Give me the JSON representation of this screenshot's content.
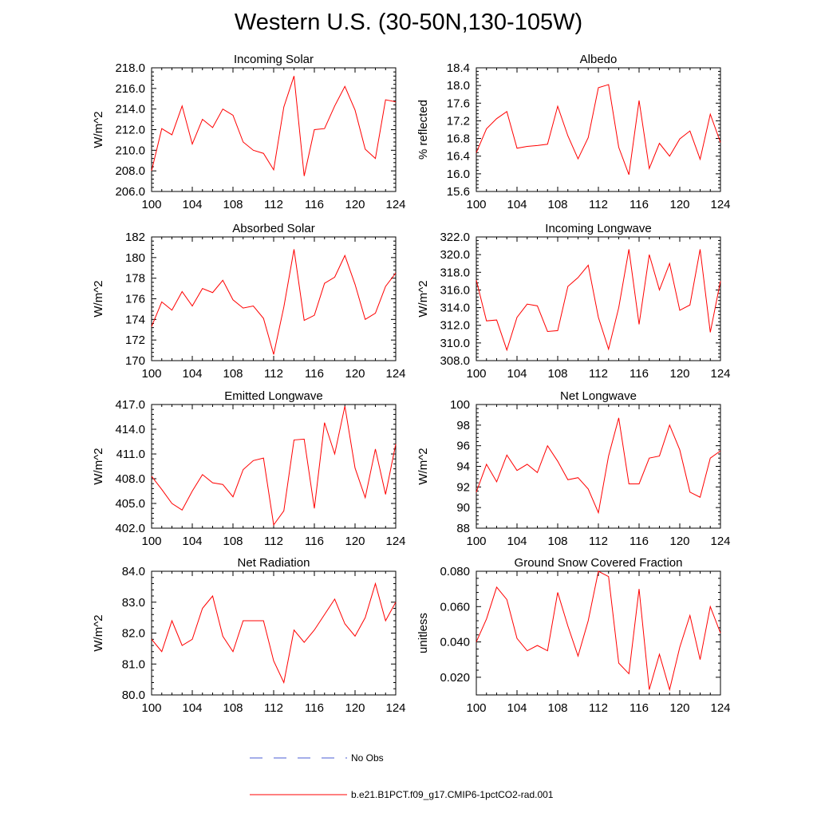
{
  "title": "Western U.S. (30-50N,130-105W)",
  "legend": [
    {
      "label": "No Obs",
      "color": "#4a5cd6",
      "dash": true
    },
    {
      "label": "b.e21.B1PCT.f09_g17.CMIP6-1pctCO2-rad.001",
      "color": "#ff0000",
      "dash": false
    }
  ],
  "chart_data": [
    {
      "type": "line",
      "title": "Incoming Solar",
      "ylabel": "W/m^2",
      "xlim": [
        100,
        124
      ],
      "ylim": [
        206.0,
        218.0
      ],
      "xticks": [
        100,
        104,
        108,
        112,
        116,
        120,
        124
      ],
      "yticks": [
        "206.0",
        "208.0",
        "210.0",
        "212.0",
        "214.0",
        "216.0",
        "218.0"
      ],
      "x": [
        100,
        101,
        102,
        103,
        104,
        105,
        106,
        107,
        108,
        109,
        110,
        111,
        112,
        113,
        114,
        115,
        116,
        117,
        118,
        119,
        120,
        121,
        122,
        123,
        124
      ],
      "series": [
        {
          "color": "#ff0000",
          "values": [
            208.0,
            212.1,
            211.5,
            214.3,
            210.6,
            213.0,
            212.2,
            214.0,
            213.4,
            210.8,
            210.0,
            209.7,
            208.1,
            214.2,
            217.2,
            207.5,
            212.0,
            212.1,
            214.3,
            216.2,
            213.9,
            210.1,
            209.2,
            214.9,
            214.7
          ]
        }
      ]
    },
    {
      "type": "line",
      "title": "Albedo",
      "ylabel": "% reflected",
      "xlim": [
        100,
        124
      ],
      "ylim": [
        15.6,
        18.4
      ],
      "xticks": [
        100,
        104,
        108,
        112,
        116,
        120,
        124
      ],
      "yticks": [
        "15.6",
        "16.0",
        "16.4",
        "16.8",
        "17.2",
        "17.6",
        "18.0",
        "18.4"
      ],
      "x": [
        100,
        101,
        102,
        103,
        104,
        105,
        106,
        107,
        108,
        109,
        110,
        111,
        112,
        113,
        114,
        115,
        116,
        117,
        118,
        119,
        120,
        121,
        122,
        123,
        124
      ],
      "series": [
        {
          "color": "#ff0000",
          "values": [
            16.48,
            17.02,
            17.25,
            17.41,
            16.58,
            16.62,
            16.64,
            16.67,
            17.53,
            16.86,
            16.34,
            16.82,
            17.95,
            18.02,
            16.6,
            15.98,
            17.66,
            16.12,
            16.69,
            16.4,
            16.79,
            16.97,
            16.33,
            17.35,
            16.71
          ]
        }
      ]
    },
    {
      "type": "line",
      "title": "Absorbed Solar",
      "ylabel": "W/m^2",
      "xlim": [
        100,
        124
      ],
      "ylim": [
        170,
        182
      ],
      "xticks": [
        100,
        104,
        108,
        112,
        116,
        120,
        124
      ],
      "yticks": [
        "170",
        "172",
        "174",
        "176",
        "178",
        "180",
        "182"
      ],
      "x": [
        100,
        101,
        102,
        103,
        104,
        105,
        106,
        107,
        108,
        109,
        110,
        111,
        112,
        113,
        114,
        115,
        116,
        117,
        118,
        119,
        120,
        121,
        122,
        123,
        124
      ],
      "series": [
        {
          "color": "#ff0000",
          "values": [
            173.3,
            175.7,
            174.9,
            176.7,
            175.3,
            177.0,
            176.6,
            177.8,
            175.9,
            175.1,
            175.3,
            174.1,
            170.6,
            175.2,
            180.8,
            173.9,
            174.4,
            177.5,
            178.1,
            180.2,
            177.4,
            174.0,
            174.6,
            177.2,
            178.5
          ]
        }
      ]
    },
    {
      "type": "line",
      "title": "Incoming Longwave",
      "ylabel": "W/m^2",
      "xlim": [
        100,
        124
      ],
      "ylim": [
        308.0,
        322.0
      ],
      "xticks": [
        100,
        104,
        108,
        112,
        116,
        120,
        124
      ],
      "yticks": [
        "308.0",
        "310.0",
        "312.0",
        "314.0",
        "316.0",
        "318.0",
        "320.0",
        "322.0"
      ],
      "x": [
        100,
        101,
        102,
        103,
        104,
        105,
        106,
        107,
        108,
        109,
        110,
        111,
        112,
        113,
        114,
        115,
        116,
        117,
        118,
        119,
        120,
        121,
        122,
        123,
        124
      ],
      "series": [
        {
          "color": "#ff0000",
          "values": [
            317.1,
            312.5,
            312.6,
            309.2,
            312.9,
            314.4,
            314.2,
            311.3,
            311.4,
            316.4,
            317.4,
            318.8,
            312.9,
            309.3,
            314.0,
            320.6,
            312.1,
            320.0,
            316.0,
            319.0,
            313.7,
            314.3,
            320.6,
            311.2,
            317.0
          ]
        }
      ]
    },
    {
      "type": "line",
      "title": "Emitted Longwave",
      "ylabel": "W/m^2",
      "xlim": [
        100,
        124
      ],
      "ylim": [
        402.0,
        417.0
      ],
      "xticks": [
        100,
        104,
        108,
        112,
        116,
        120,
        124
      ],
      "yticks": [
        "402.0",
        "405.0",
        "408.0",
        "411.0",
        "414.0",
        "417.0"
      ],
      "x": [
        100,
        101,
        102,
        103,
        104,
        105,
        106,
        107,
        108,
        109,
        110,
        111,
        112,
        113,
        114,
        115,
        116,
        117,
        118,
        119,
        120,
        121,
        122,
        123,
        124
      ],
      "series": [
        {
          "color": "#ff0000",
          "values": [
            408.3,
            406.7,
            405.0,
            404.2,
            406.5,
            408.5,
            407.5,
            407.3,
            405.8,
            409.1,
            410.2,
            410.5,
            402.4,
            404.1,
            412.7,
            412.8,
            404.4,
            414.8,
            411.0,
            416.8,
            409.3,
            405.7,
            411.6,
            406.1,
            412.2
          ]
        }
      ]
    },
    {
      "type": "line",
      "title": "Net Longwave",
      "ylabel": "W/m^2",
      "xlim": [
        100,
        124
      ],
      "ylim": [
        88,
        100
      ],
      "xticks": [
        100,
        104,
        108,
        112,
        116,
        120,
        124
      ],
      "yticks": [
        "88",
        "90",
        "92",
        "94",
        "96",
        "98",
        "100"
      ],
      "x": [
        100,
        101,
        102,
        103,
        104,
        105,
        106,
        107,
        108,
        109,
        110,
        111,
        112,
        113,
        114,
        115,
        116,
        117,
        118,
        119,
        120,
        121,
        122,
        123,
        124
      ],
      "series": [
        {
          "color": "#ff0000",
          "values": [
            91.5,
            94.2,
            92.5,
            95.1,
            93.6,
            94.2,
            93.4,
            96.0,
            94.5,
            92.7,
            92.9,
            91.8,
            89.5,
            95.0,
            98.7,
            92.3,
            92.3,
            94.8,
            95.0,
            98.0,
            95.6,
            91.5,
            91.0,
            94.8,
            95.5
          ]
        }
      ]
    },
    {
      "type": "line",
      "title": "Net Radiation",
      "ylabel": "W/m^2",
      "xlim": [
        100,
        124
      ],
      "ylim": [
        80.0,
        84.0
      ],
      "xticks": [
        100,
        104,
        108,
        112,
        116,
        120,
        124
      ],
      "yticks": [
        "80.0",
        "81.0",
        "82.0",
        "83.0",
        "84.0"
      ],
      "x": [
        100,
        101,
        102,
        103,
        104,
        105,
        106,
        107,
        108,
        109,
        110,
        111,
        112,
        113,
        114,
        115,
        116,
        117,
        118,
        119,
        120,
        121,
        122,
        123,
        124
      ],
      "series": [
        {
          "color": "#ff0000",
          "values": [
            81.8,
            81.4,
            82.4,
            81.6,
            81.8,
            82.8,
            83.2,
            81.9,
            81.4,
            82.4,
            82.4,
            82.4,
            81.1,
            80.4,
            82.1,
            81.7,
            82.1,
            82.6,
            83.1,
            82.3,
            81.9,
            82.5,
            83.6,
            82.4,
            83.0
          ]
        }
      ]
    },
    {
      "type": "line",
      "title": "Ground Snow Covered Fraction",
      "ylabel": "unitless",
      "xlim": [
        100,
        124
      ],
      "ylim": [
        0.01,
        0.08
      ],
      "xticks": [
        100,
        104,
        108,
        112,
        116,
        120,
        124
      ],
      "yticks": [
        "0.020",
        "0.040",
        "0.060",
        "0.080"
      ],
      "yticks_values": [
        0.02,
        0.04,
        0.06,
        0.08
      ],
      "x": [
        100,
        101,
        102,
        103,
        104,
        105,
        106,
        107,
        108,
        109,
        110,
        111,
        112,
        113,
        114,
        115,
        116,
        117,
        118,
        119,
        120,
        121,
        122,
        123,
        124
      ],
      "series": [
        {
          "color": "#ff0000",
          "values": [
            0.04,
            0.053,
            0.071,
            0.064,
            0.042,
            0.035,
            0.038,
            0.035,
            0.068,
            0.049,
            0.032,
            0.052,
            0.08,
            0.077,
            0.028,
            0.022,
            0.07,
            0.013,
            0.033,
            0.013,
            0.037,
            0.055,
            0.03,
            0.06,
            0.045
          ]
        }
      ]
    }
  ]
}
